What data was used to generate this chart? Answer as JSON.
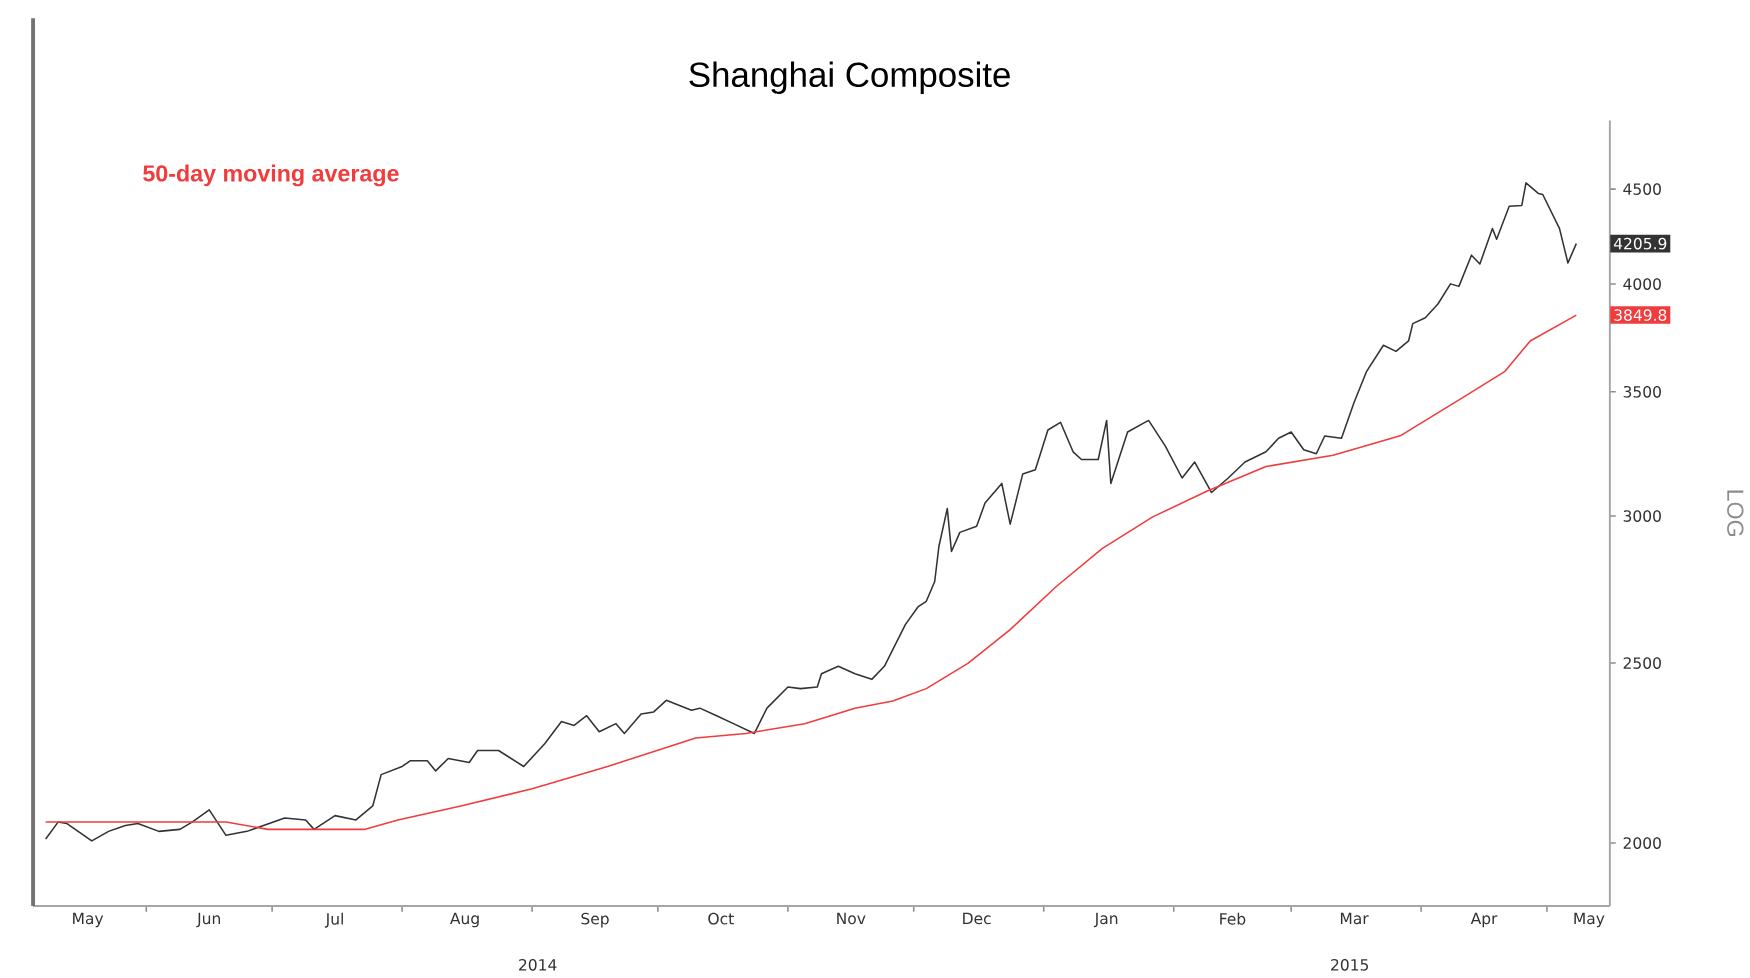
{
  "chart_data": {
    "type": "line",
    "title": "Shanghai Composite",
    "ylabel": "LOG",
    "log": true,
    "grid": false,
    "xlim": [
      "2014-05-05",
      "2015-05-16"
    ],
    "ylim": [
      1850,
      4900
    ],
    "yticks": [
      2000,
      2500,
      3000,
      3500,
      4000,
      4500
    ],
    "xticks": [
      {
        "value": "2014-06-01",
        "label": null
      },
      {
        "value": "2014-07-01",
        "label": null
      },
      {
        "value": "2014-08-01",
        "label": null
      },
      {
        "value": "2014-09-01",
        "label": null
      },
      {
        "value": "2014-10-01",
        "label": null
      },
      {
        "value": "2014-11-01",
        "label": null
      },
      {
        "value": "2014-12-01",
        "label": null
      },
      {
        "value": "2015-01-01",
        "label": null
      },
      {
        "value": "2015-02-01",
        "label": null
      },
      {
        "value": "2015-03-01",
        "label": null
      },
      {
        "value": "2015-04-01",
        "label": null
      },
      {
        "value": "2015-05-01",
        "label": null
      },
      {
        "value": "2014-05-18",
        "label": "May"
      },
      {
        "value": "2014-06-16",
        "label": "Jun"
      },
      {
        "value": "2014-07-16",
        "label": "Jul"
      },
      {
        "value": "2014-08-16",
        "label": "Aug"
      },
      {
        "value": "2014-09-16",
        "label": "Sep"
      },
      {
        "value": "2014-10-16",
        "label": "Oct"
      },
      {
        "value": "2014-11-16",
        "label": "Nov"
      },
      {
        "value": "2014-12-16",
        "label": "Dec"
      },
      {
        "value": "2015-01-16",
        "label": "Jan"
      },
      {
        "value": "2015-02-15",
        "label": "Feb"
      },
      {
        "value": "2015-03-16",
        "label": "Mar"
      },
      {
        "value": "2015-04-16",
        "label": "Apr"
      },
      {
        "value": "2015-05-11",
        "label": "May"
      }
    ],
    "annotations": [
      "2014",
      "2015",
      "4205.9",
      "3849.8"
    ],
    "series": [
      {
        "color": "#333333",
        "x": [
          "2014-05-08",
          "2014-05-11",
          "2014-05-13",
          "2014-05-19",
          "2014-05-23",
          "2014-05-27",
          "2014-05-30",
          "2014-06-04",
          "2014-06-09",
          "2014-06-12",
          "2014-06-16",
          "2014-06-20",
          "2014-06-25",
          "2014-07-04",
          "2014-07-09",
          "2014-07-11",
          "2014-07-16",
          "2014-07-21",
          "2014-07-25",
          "2014-07-27",
          "2014-08-01",
          "2014-08-03",
          "2014-08-07",
          "2014-08-09",
          "2014-08-12",
          "2014-08-17",
          "2014-08-19",
          "2014-08-24",
          "2014-08-30",
          "2014-09-04",
          "2014-09-08",
          "2014-09-11",
          "2014-09-14",
          "2014-09-17",
          "2014-09-21",
          "2014-09-23",
          "2014-09-27",
          "2014-09-30",
          "2014-10-03",
          "2014-10-09",
          "2014-10-11",
          "2014-10-15",
          "2014-10-19",
          "2014-10-24",
          "2014-10-27",
          "2014-11-01",
          "2014-11-04",
          "2014-11-08",
          "2014-11-09",
          "2014-11-13",
          "2014-11-17",
          "2014-11-21",
          "2014-11-24",
          "2014-11-29",
          "2014-12-02",
          "2014-12-04",
          "2014-12-06",
          "2014-12-07",
          "2014-12-09",
          "2014-12-10",
          "2014-12-12",
          "2014-12-16",
          "2014-12-18",
          "2014-12-22",
          "2014-12-24",
          "2014-12-27",
          "2014-12-30",
          "2015-01-02",
          "2015-01-05",
          "2015-01-08",
          "2015-01-10",
          "2015-01-14",
          "2015-01-16",
          "2015-01-17",
          "2015-01-21",
          "2015-01-26",
          "2015-01-30",
          "2015-02-03",
          "2015-02-06",
          "2015-02-10",
          "2015-02-14",
          "2015-02-18",
          "2015-02-23",
          "2015-02-26",
          "2015-03-01",
          "2015-03-04",
          "2015-03-07",
          "2015-03-09",
          "2015-03-13",
          "2015-03-16",
          "2015-03-19",
          "2015-03-23",
          "2015-03-26",
          "2015-03-29",
          "2015-03-30",
          "2015-04-02",
          "2015-04-05",
          "2015-04-08",
          "2015-04-10",
          "2015-04-13",
          "2015-04-15",
          "2015-04-18",
          "2015-04-19",
          "2015-04-22",
          "2015-04-25",
          "2015-04-26",
          "2015-04-29",
          "2015-04-30",
          "2015-05-04",
          "2015-05-06",
          "2015-05-08"
        ],
        "values": [
          2010,
          2053,
          2049,
          2005,
          2029,
          2044,
          2049,
          2029,
          2034,
          2053,
          2084,
          2019,
          2029,
          2063,
          2058,
          2034,
          2069,
          2058,
          2094,
          2177,
          2199,
          2215,
          2215,
          2187,
          2221,
          2210,
          2243,
          2243,
          2199,
          2262,
          2325,
          2314,
          2342,
          2296,
          2319,
          2291,
          2347,
          2353,
          2387,
          2358,
          2364,
          2342,
          2319,
          2291,
          2364,
          2427,
          2422,
          2427,
          2467,
          2490,
          2467,
          2450,
          2490,
          2622,
          2680,
          2699,
          2766,
          2889,
          3028,
          2871,
          2940,
          2962,
          3049,
          3124,
          2970,
          3161,
          3177,
          3338,
          3370,
          3249,
          3218,
          3218,
          3378,
          3124,
          3330,
          3378,
          3272,
          3145,
          3208,
          3089,
          3145,
          3208,
          3249,
          3304,
          3330,
          3257,
          3241,
          3313,
          3304,
          3454,
          3590,
          3708,
          3680,
          3728,
          3809,
          3837,
          3903,
          4001,
          3989,
          4146,
          4101,
          4285,
          4229,
          4405,
          4410,
          4535,
          4475,
          4470,
          4285,
          4106,
          4205.9
        ]
      },
      {
        "name": "50-day moving average",
        "color": "#f03c3c",
        "x": [
          "2014-05-08",
          "2014-06-20",
          "2014-06-30",
          "2014-07-23",
          "2014-07-31",
          "2014-08-15",
          "2014-09-01",
          "2014-09-19",
          "2014-10-10",
          "2014-10-22",
          "2014-11-05",
          "2014-11-17",
          "2014-11-26",
          "2014-12-04",
          "2014-12-14",
          "2014-12-24",
          "2015-01-04",
          "2015-01-15",
          "2015-01-27",
          "2015-02-09",
          "2015-02-23",
          "2015-03-11",
          "2015-03-27",
          "2015-04-11",
          "2015-04-21",
          "2015-04-27",
          "2015-05-08"
        ],
        "values": [
          2053,
          2053,
          2034,
          2034,
          2058,
          2094,
          2139,
          2199,
          2278,
          2291,
          2319,
          2364,
          2385,
          2422,
          2500,
          2606,
          2749,
          2882,
          2997,
          3095,
          3190,
          3235,
          3314,
          3476,
          3590,
          3728,
          3849.8
        ]
      }
    ]
  }
}
